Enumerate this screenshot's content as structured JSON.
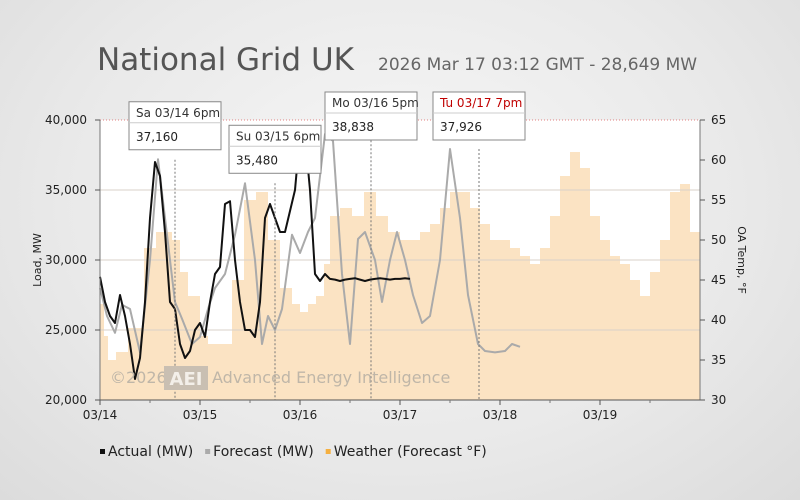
{
  "header": {
    "title": "National Grid UK",
    "subtitle": "2026 Mar 17 03:12 GMT - 28,649 MW"
  },
  "chart_data": {
    "type": "line",
    "title": "National Grid UK",
    "ylabel": "Load, MW",
    "y2label": "OA Temp, °F",
    "ylim": [
      20000,
      40000
    ],
    "y2lim": [
      30,
      65
    ],
    "xlim": [
      0,
      6
    ],
    "x_ticks": [
      {
        "x": 0,
        "label": "03/14"
      },
      {
        "x": 1,
        "label": "03/15"
      },
      {
        "x": 2,
        "label": "03/16"
      },
      {
        "x": 3,
        "label": "03/17"
      },
      {
        "x": 4,
        "label": "03/18"
      },
      {
        "x": 5,
        "label": "03/19"
      }
    ],
    "y_ticks": [
      "20,000",
      "25,000",
      "30,000",
      "35,000",
      "40,000"
    ],
    "y_tick_values": [
      20000,
      25000,
      30000,
      35000,
      40000
    ],
    "y2_ticks": [
      30,
      35,
      40,
      45,
      50,
      55,
      60,
      65
    ],
    "legend": {
      "position": "bottom-left",
      "entries": [
        {
          "label": "Actual (MW)",
          "color": "#111111"
        },
        {
          "label": "Forecast (MW)",
          "color": "#aaaaaa"
        },
        {
          "label": "Weather (Forecast °F)",
          "color": "#f5b041"
        }
      ]
    },
    "series": [
      {
        "name": "Weather (Forecast °F)",
        "axis": "y2",
        "kind": "step-area",
        "color": "#fbe3c3",
        "x": [
          0,
          0.04,
          0.08,
          0.16,
          0.28,
          0.44,
          0.56,
          0.72,
          0.8,
          0.88,
          1.0,
          1.08,
          1.2,
          1.32,
          1.44,
          1.56,
          1.68,
          1.8,
          1.92,
          2.0,
          2.08,
          2.16,
          2.24,
          2.3,
          2.4,
          2.52,
          2.64,
          2.76,
          2.88,
          3.0,
          3.1,
          3.2,
          3.3,
          3.4,
          3.5,
          3.6,
          3.7,
          3.8,
          3.9,
          4.0,
          4.1,
          4.2,
          4.3,
          4.4,
          4.5,
          4.6,
          4.7,
          4.8,
          4.9,
          5.0,
          5.1,
          5.2,
          5.3,
          5.4,
          5.5,
          5.6,
          5.7,
          5.8,
          5.9,
          6.0
        ],
        "values": [
          42,
          38,
          35,
          36,
          39,
          49,
          51,
          50,
          46,
          43,
          38,
          37,
          37,
          45,
          55,
          56,
          50,
          44,
          42,
          41,
          42,
          43,
          47,
          53,
          54,
          53,
          56,
          53,
          51,
          50,
          50,
          51,
          52,
          54,
          56,
          56,
          54,
          52,
          50,
          50,
          49,
          48,
          47,
          49,
          53,
          58,
          61,
          59,
          53,
          50,
          48,
          47,
          45,
          43,
          46,
          50,
          56,
          57,
          51,
          48
        ],
        "description": "OA temperature forecast (°F), right axis"
      },
      {
        "name": "Forecast (MW)",
        "axis": "y",
        "kind": "line",
        "color": "#aaaaaa",
        "x": [
          0,
          0.07,
          0.15,
          0.22,
          0.3,
          0.4,
          0.5,
          0.58,
          0.65,
          0.75,
          0.82,
          0.92,
          1.0,
          1.08,
          1.15,
          1.25,
          1.35,
          1.45,
          1.55,
          1.62,
          1.68,
          1.75,
          1.82,
          1.92,
          2.0,
          2.08,
          2.15,
          2.25,
          2.33,
          2.42,
          2.5,
          2.58,
          2.65,
          2.75,
          2.82,
          2.9,
          2.97,
          3.05,
          3.13,
          3.22,
          3.3,
          3.4,
          3.5,
          3.6,
          3.68,
          3.78,
          3.85,
          3.95,
          4.05,
          4.12,
          4.2
        ],
        "values": [
          28000,
          26000,
          24800,
          26800,
          26500,
          23400,
          30000,
          37200,
          33000,
          27000,
          25800,
          24000,
          24500,
          26500,
          28000,
          29000,
          31800,
          35480,
          30000,
          24000,
          26000,
          25000,
          26500,
          31800,
          30500,
          32000,
          33000,
          39000,
          38500,
          29000,
          24000,
          31500,
          32000,
          30000,
          27000,
          30000,
          32000,
          30000,
          27500,
          25500,
          26000,
          30000,
          37926,
          33000,
          27500,
          24000,
          23500,
          23400,
          23500,
          24000,
          23800
        ],
        "description": "Forecast load (MW), left axis"
      },
      {
        "name": "Actual (MW)",
        "axis": "y",
        "kind": "line",
        "color": "#111111",
        "x": [
          0,
          0.05,
          0.1,
          0.15,
          0.2,
          0.25,
          0.3,
          0.35,
          0.4,
          0.45,
          0.5,
          0.55,
          0.6,
          0.65,
          0.7,
          0.75,
          0.8,
          0.85,
          0.9,
          0.95,
          1.0,
          1.05,
          1.1,
          1.15,
          1.2,
          1.25,
          1.3,
          1.35,
          1.4,
          1.45,
          1.5,
          1.55,
          1.6,
          1.65,
          1.7,
          1.75,
          1.8,
          1.85,
          1.9,
          1.95,
          2.0,
          2.05,
          2.1,
          2.15,
          2.2,
          2.25,
          2.3,
          2.35,
          2.4,
          2.45,
          2.5,
          2.55,
          2.6,
          2.65,
          2.7,
          2.75,
          2.8,
          2.85,
          2.9,
          2.95,
          3.0,
          3.05,
          3.1
        ],
        "values": [
          28800,
          27000,
          26000,
          25500,
          27500,
          26000,
          24000,
          21500,
          23000,
          27000,
          33000,
          37000,
          36000,
          32000,
          27000,
          26500,
          24000,
          23000,
          23500,
          25000,
          25500,
          24500,
          27000,
          29000,
          29500,
          34000,
          34200,
          30000,
          27000,
          25000,
          25000,
          24500,
          27000,
          33000,
          34000,
          33000,
          32000,
          32000,
          33500,
          35000,
          39000,
          38838,
          35000,
          29000,
          28500,
          29000,
          28649,
          28600,
          28500,
          28600,
          28649,
          28700,
          28600,
          28500,
          28600,
          28649,
          28700,
          28650,
          28600,
          28650,
          28649,
          28700,
          28650
        ],
        "description": "Actual load (MW), left axis"
      }
    ],
    "callouts": [
      {
        "date": "Sa 03/14 6pm",
        "value": "37,160",
        "x": 0.75,
        "highlight": false
      },
      {
        "date": "Su 03/15 6pm",
        "value": "35,480",
        "x": 1.75,
        "highlight": false
      },
      {
        "date": "Mo 03/16 5pm",
        "value": "38,838",
        "x": 2.71,
        "highlight": false
      },
      {
        "date": "Tu 03/17 7pm",
        "value": "37,926",
        "x": 3.79,
        "highlight": true
      }
    ],
    "watermark": {
      "prefix": "©2026",
      "logo": "AEI",
      "text": "Advanced Energy Intelligence"
    }
  }
}
